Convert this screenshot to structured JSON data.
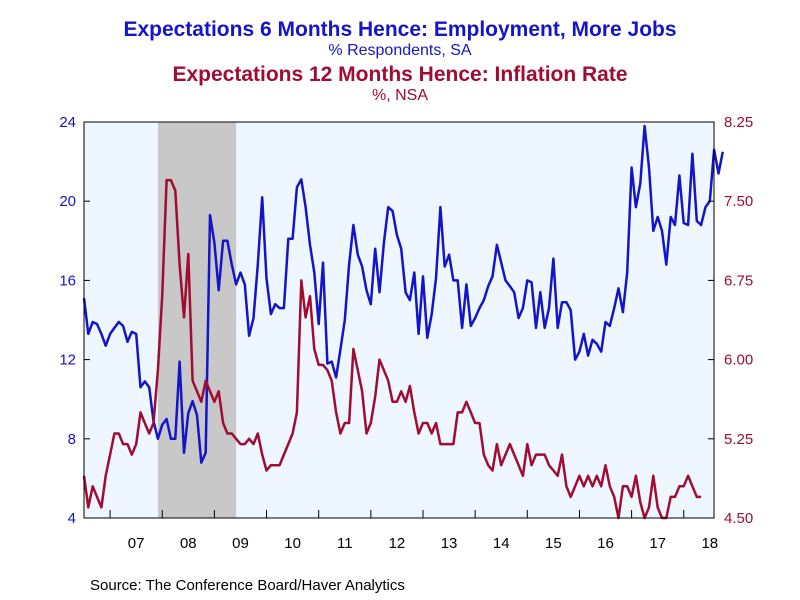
{
  "titles": {
    "title1": "Expectations 6 Months Hence: Employment, More Jobs",
    "subtitle1": "% Respondents, SA",
    "title2": "Expectations 12 Months Hence: Inflation Rate",
    "subtitle2": "%, NSA"
  },
  "source": "Source:  The Conference Board/Haver Analytics",
  "colors": {
    "employment": "#1414c8",
    "inflation": "#a00c32",
    "plot_bg": "#eef6ff",
    "recession": "#c8c8c8"
  },
  "chart_data": {
    "type": "line",
    "x_range": [
      2006.5,
      2018.58
    ],
    "x_ticks": [
      "07",
      "08",
      "09",
      "10",
      "11",
      "12",
      "13",
      "14",
      "15",
      "16",
      "17",
      "18"
    ],
    "recession": [
      2007.917,
      2009.417
    ],
    "y_left": {
      "range": [
        4,
        24
      ],
      "ticks": [
        "4",
        "8",
        "12",
        "16",
        "20",
        "24"
      ]
    },
    "y_right": {
      "range": [
        4.5,
        8.25
      ],
      "ticks": [
        "4.50",
        "5.25",
        "6.00",
        "6.75",
        "7.50",
        "8.25"
      ]
    },
    "grid": false,
    "series": [
      {
        "name": "Expectations 6 Months Hence: Employment, More Jobs",
        "axis": "left",
        "start": 2006.5,
        "step": 0.08333,
        "values": [
          15.1,
          13.3,
          13.9,
          13.8,
          13.3,
          12.7,
          13.3,
          13.6,
          13.9,
          13.7,
          12.9,
          13.4,
          13.3,
          10.6,
          10.9,
          10.6,
          8.9,
          8.0,
          8.7,
          9.0,
          8.0,
          8.0,
          11.9,
          7.3,
          9.3,
          9.9,
          9.2,
          6.8,
          7.3,
          19.3,
          17.9,
          15.5,
          18.0,
          18.0,
          16.8,
          15.8,
          16.4,
          15.8,
          13.2,
          14.1,
          16.8,
          20.2,
          16.1,
          14.3,
          14.8,
          14.6,
          14.6,
          18.1,
          18.1,
          20.7,
          21.1,
          19.7,
          17.8,
          16.4,
          13.8,
          16.9,
          11.8,
          11.9,
          11.1,
          12.5,
          14.0,
          16.8,
          18.8,
          17.3,
          16.7,
          15.5,
          14.8,
          17.6,
          15.4,
          17.9,
          19.7,
          19.5,
          18.3,
          17.6,
          15.4,
          15.0,
          16.4,
          13.3,
          16.2,
          13.1,
          14.3,
          16.1,
          19.7,
          16.7,
          17.3,
          16.0,
          16.0,
          13.6,
          15.8,
          13.7,
          14.1,
          14.6,
          15.0,
          15.7,
          16.2,
          17.8,
          16.9,
          16.0,
          15.7,
          15.4,
          14.1,
          14.6,
          16.0,
          15.9,
          13.6,
          15.4,
          13.6,
          14.6,
          17.1,
          13.6,
          14.9,
          14.9,
          14.5,
          12.0,
          12.4,
          13.3,
          12.2,
          13.0,
          12.8,
          12.4,
          13.9,
          13.7,
          14.6,
          15.6,
          14.4,
          16.4,
          21.7,
          19.7,
          20.9,
          23.8,
          21.7,
          18.5,
          19.2,
          18.5,
          16.8,
          19.2,
          18.8,
          21.3,
          18.9,
          18.8,
          22.4,
          19.0,
          18.8,
          19.7,
          20.0,
          22.6,
          21.4,
          22.5
        ]
      },
      {
        "name": "Expectations 12 Months Hence: Inflation Rate",
        "axis": "right",
        "start": 2006.5,
        "step": 0.08333,
        "values": [
          4.9,
          4.6,
          4.8,
          4.7,
          4.6,
          4.9,
          5.1,
          5.3,
          5.3,
          5.2,
          5.2,
          5.1,
          5.2,
          5.5,
          5.4,
          5.3,
          5.4,
          5.9,
          6.6,
          7.7,
          7.7,
          7.6,
          6.9,
          6.4,
          7.0,
          5.8,
          5.7,
          5.6,
          5.8,
          5.7,
          5.6,
          5.7,
          5.4,
          5.3,
          5.3,
          5.25,
          5.2,
          5.2,
          5.25,
          5.2,
          5.3,
          5.1,
          4.95,
          5.0,
          5.0,
          5.0,
          5.1,
          5.2,
          5.3,
          5.5,
          6.75,
          6.4,
          6.6,
          6.1,
          5.95,
          5.95,
          5.9,
          5.8,
          5.5,
          5.3,
          5.4,
          5.4,
          6.1,
          5.9,
          5.7,
          5.3,
          5.4,
          5.65,
          6.0,
          5.9,
          5.8,
          5.6,
          5.6,
          5.7,
          5.6,
          5.75,
          5.5,
          5.3,
          5.4,
          5.4,
          5.3,
          5.4,
          5.2,
          5.2,
          5.2,
          5.2,
          5.5,
          5.5,
          5.6,
          5.5,
          5.4,
          5.4,
          5.1,
          5.0,
          4.95,
          5.2,
          5.0,
          5.1,
          5.2,
          5.1,
          5.0,
          4.9,
          5.2,
          5.0,
          5.1,
          5.1,
          5.1,
          5.0,
          4.95,
          4.9,
          5.1,
          4.8,
          4.7,
          4.8,
          4.9,
          4.8,
          4.9,
          4.8,
          4.9,
          4.8,
          5.0,
          4.8,
          4.7,
          4.5,
          4.8,
          4.8,
          4.7,
          4.9,
          4.65,
          4.5,
          4.6,
          4.9,
          4.6,
          4.5,
          4.5,
          4.7,
          4.7,
          4.8,
          4.8,
          4.9,
          4.8,
          4.7,
          4.7
        ]
      }
    ]
  }
}
